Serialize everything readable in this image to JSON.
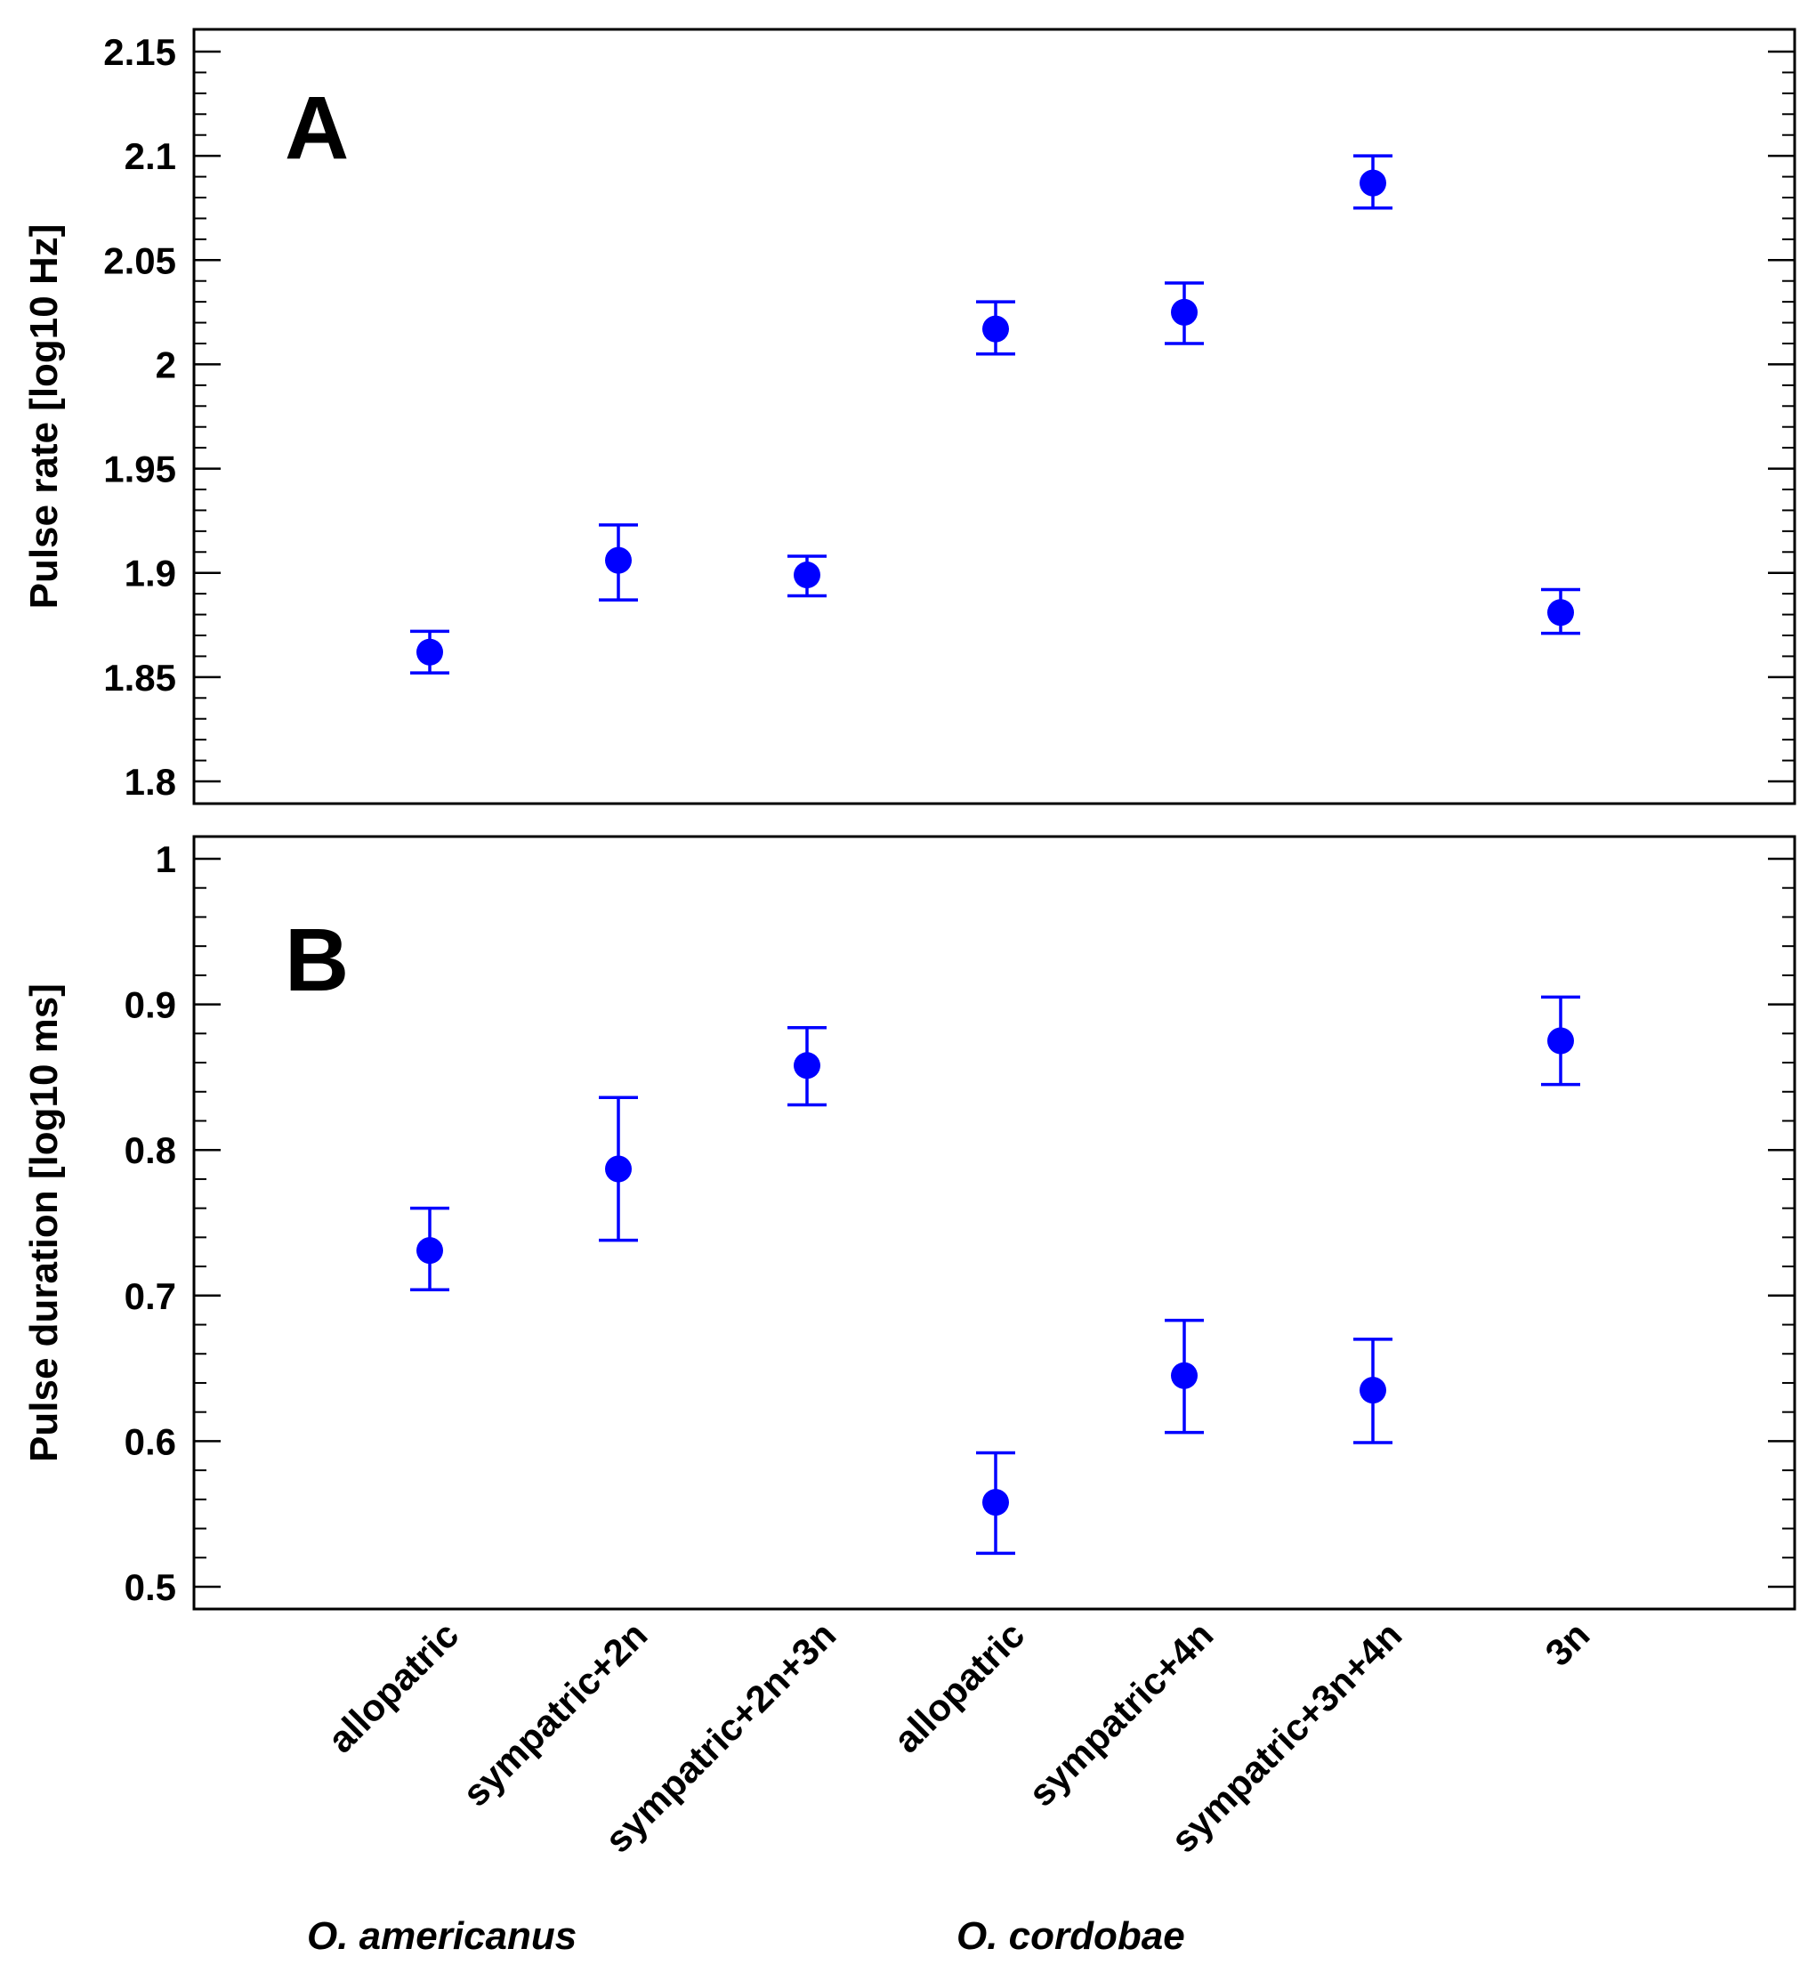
{
  "chart_data": [
    {
      "panel": "A",
      "type": "scatter",
      "style": "mean-with-error-bars",
      "ylabel": "Pulse rate [log10 Hz]",
      "ylim": [
        1.8,
        2.15
      ],
      "yticks": [
        1.8,
        1.85,
        1.9,
        1.95,
        2,
        2.05,
        2.1,
        2.15
      ],
      "ytick_labels": [
        "1.8",
        "1.85",
        "1.9",
        "1.95",
        "2",
        "2.05",
        "2.1",
        "2.15"
      ],
      "points": [
        {
          "mean": 1.862,
          "low": 1.852,
          "high": 1.872
        },
        {
          "mean": 1.906,
          "low": 1.887,
          "high": 1.923
        },
        {
          "mean": 1.899,
          "low": 1.889,
          "high": 1.908
        },
        {
          "mean": 2.017,
          "low": 2.005,
          "high": 2.03
        },
        {
          "mean": 2.025,
          "low": 2.01,
          "high": 2.039
        },
        {
          "mean": 2.087,
          "low": 2.075,
          "high": 2.1
        },
        {
          "mean": 1.881,
          "low": 1.871,
          "high": 1.892
        }
      ]
    },
    {
      "panel": "B",
      "type": "scatter",
      "style": "mean-with-error-bars",
      "ylabel": "Pulse duration [log10 ms]",
      "ylim": [
        0.5,
        1.0
      ],
      "yticks": [
        0.5,
        0.6,
        0.7,
        0.8,
        0.9,
        1.0
      ],
      "ytick_labels": [
        "0.5",
        "0.6",
        "0.7",
        "0.8",
        "0.9",
        "1"
      ],
      "points": [
        {
          "mean": 0.731,
          "low": 0.704,
          "high": 0.76
        },
        {
          "mean": 0.787,
          "low": 0.738,
          "high": 0.836
        },
        {
          "mean": 0.858,
          "low": 0.831,
          "high": 0.884
        },
        {
          "mean": 0.558,
          "low": 0.523,
          "high": 0.592
        },
        {
          "mean": 0.645,
          "low": 0.606,
          "high": 0.683
        },
        {
          "mean": 0.635,
          "low": 0.599,
          "high": 0.67
        },
        {
          "mean": 0.875,
          "low": 0.845,
          "high": 0.905
        }
      ]
    }
  ],
  "categories": [
    "allopatric",
    "sympatric+2n",
    "sympatric+2n+3n",
    "allopatric",
    "sympatric+4n",
    "sympatric+3n+4n",
    "3n"
  ],
  "species": [
    "O. americanus",
    "O. cordobae"
  ],
  "colors": {
    "marker": "#0000ff",
    "axes": "#000000"
  }
}
